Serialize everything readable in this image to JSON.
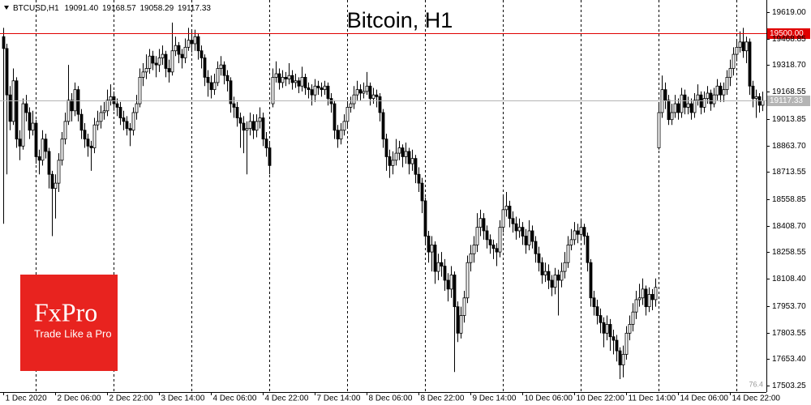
{
  "chart_data": {
    "type": "candlestick",
    "title": "Bitcoin, H1",
    "info_line": [
      "BTCUSD,H1",
      "19091.40",
      "19168.57",
      "19058.29",
      "19117.33"
    ],
    "corner_note": "76.4",
    "logo": {
      "brand": "FxPro",
      "tagline": "Trade Like a Pro"
    },
    "up_color": "#ffffff",
    "down_color": "#000000",
    "line_color": "#000000",
    "xlim": [
      -1,
      235.25
    ],
    "ylim": [
      17466.6,
      19687.8
    ],
    "xticks": [
      {
        "value": 0,
        "label": "1 Dec 2020"
      },
      {
        "value": 16,
        "label": "2 Dec 06:00"
      },
      {
        "value": 32,
        "label": "2 Dec 22:00"
      },
      {
        "value": 48,
        "label": "3 Dec 14:00"
      },
      {
        "value": 64,
        "label": "4 Dec 06:00"
      },
      {
        "value": 80,
        "label": "4 Dec 22:00"
      },
      {
        "value": 96,
        "label": "7 Dec 14:00"
      },
      {
        "value": 112,
        "label": "8 Dec 06:00"
      },
      {
        "value": 128,
        "label": "8 Dec 22:00"
      },
      {
        "value": 144,
        "label": "9 Dec 14:00"
      },
      {
        "value": 160,
        "label": "10 Dec 06:00"
      },
      {
        "value": 176,
        "label": "10 Dec 22:00"
      },
      {
        "value": 192,
        "label": "11 Dec 14:00"
      },
      {
        "value": 208,
        "label": "14 Dec 06:00"
      },
      {
        "value": 224,
        "label": "14 Dec 22:00"
      }
    ],
    "yticks": [
      {
        "value": 19619,
        "label": "19619.00"
      },
      {
        "value": 19468.85,
        "label": "19468.85"
      },
      {
        "value": 19318.7,
        "label": "19318.70"
      },
      {
        "value": 19168.55,
        "label": "19168.55"
      },
      {
        "value": 19013.85,
        "label": "19013.85"
      },
      {
        "value": 18863.7,
        "label": "18863.70"
      },
      {
        "value": 18713.55,
        "label": "18713.55"
      },
      {
        "value": 18558.85,
        "label": "18558.85"
      },
      {
        "value": 18408.7,
        "label": "18408.70"
      },
      {
        "value": 18258.55,
        "label": "18258.55"
      },
      {
        "value": 18108.4,
        "label": "18108.40"
      },
      {
        "value": 17953.7,
        "label": "17953.70"
      },
      {
        "value": 17803.55,
        "label": "17803.55"
      },
      {
        "value": 17653.4,
        "label": "17653.40"
      },
      {
        "value": 17503.25,
        "label": "17503.25"
      }
    ],
    "separators": [
      10,
      34,
      58,
      82,
      106,
      130,
      154,
      178,
      202,
      226
    ],
    "hlines": [
      {
        "value": 19500,
        "label": "19500.00",
        "color": "#e00000"
      },
      {
        "value": 19117.33,
        "label": "19117.33",
        "color": "#b4b4b4"
      }
    ],
    "open": [
      19480,
      19413,
      19150,
      19000,
      19230,
      18900,
      18860,
      19100,
      19050,
      18950,
      18990,
      18800,
      18780,
      18900,
      18830,
      18700,
      18620,
      18650,
      18780,
      18900,
      19000,
      19120,
      19060,
      19180,
      19040,
      18950,
      18900,
      18860,
      18850,
      18980,
      19000,
      19050,
      19060,
      19120,
      19140,
      19100,
      19080,
      19020,
      19000,
      18960,
      18950,
      19050,
      19100,
      19250,
      19280,
      19300,
      19370,
      19330,
      19320,
      19360,
      19380,
      19300,
      19280,
      19400,
      19430,
      19380,
      19360,
      19420,
      19460,
      19440,
      19480,
      19400,
      19360,
      19250,
      19220,
      19180,
      19220,
      19300,
      19320,
      19260,
      19230,
      19100,
      19080,
      19020,
      18990,
      18950,
      18960,
      19000,
      18950,
      19000,
      19020,
      18900,
      18850,
      19100,
      19250,
      19270,
      19220,
      19250,
      19240,
      19260,
      19220,
      19230,
      19200,
      19250,
      19190,
      19180,
      19150,
      19200,
      19190,
      19180,
      19200,
      19130,
      19100,
      18950,
      18900,
      18950,
      19000,
      19080,
      19100,
      19150,
      19180,
      19160,
      19170,
      19200,
      19130,
      19150,
      19140,
      19050,
      18900,
      18800,
      18750,
      18780,
      18820,
      18850,
      18800,
      18830,
      18760,
      18790,
      18700,
      18650,
      18550,
      18350,
      18260,
      18300,
      18150,
      18200,
      18180,
      18100,
      18050,
      18130,
      17950,
      17800,
      17900,
      18000,
      18200,
      18250,
      18300,
      18400,
      18450,
      18380,
      18330,
      18300,
      18280,
      18260,
      18400,
      18500,
      18520,
      18450,
      18420,
      18380,
      18400,
      18350,
      18300,
      18380,
      18320,
      18250,
      18200,
      18130,
      18150,
      18100,
      18060,
      18130,
      18100,
      18150,
      18200,
      18300,
      18330,
      18380,
      18360,
      18400,
      18350,
      18200,
      18000,
      17950,
      17900,
      17860,
      17800,
      17850,
      17780,
      17760,
      17700,
      17620,
      17680,
      17800,
      17850,
      17920,
      17990,
      18000,
      18050,
      17950,
      18020,
      17990,
      18850,
      19050,
      19180,
      19120,
      19010,
      19050,
      19100,
      19050,
      19150,
      19080,
      19100,
      19050,
      19120,
      19150,
      19080,
      19130,
      19160,
      19100,
      19150,
      19200,
      19150,
      19180,
      19250,
      19300,
      19380,
      19420,
      19450,
      19400,
      19450,
      19200,
      19130,
      19140,
      19091.4
    ],
    "high": [
      19530,
      19440,
      19200,
      19300,
      19250,
      18950,
      19130,
      19150,
      19080,
      19060,
      19010,
      18840,
      18950,
      18930,
      18850,
      18720,
      18700,
      18820,
      18940,
      19050,
      19320,
      19160,
      19220,
      19200,
      19070,
      18990,
      18930,
      18890,
      19020,
      19060,
      19090,
      19110,
      19180,
      19210,
      19170,
      19130,
      19110,
      19060,
      19030,
      18990,
      19080,
      19150,
      19300,
      19330,
      19380,
      19410,
      19400,
      19370,
      19410,
      19430,
      19400,
      19350,
      19560,
      19480,
      19450,
      19410,
      19470,
      19530,
      19510,
      19520,
      19500,
      19430,
      19380,
      19290,
      19260,
      19270,
      19340,
      19370,
      19340,
      19290,
      19250,
      19140,
      19110,
      19050,
      19030,
      19000,
      19050,
      19040,
      19040,
      19080,
      19050,
      18940,
      18880,
      19300,
      19340,
      19300,
      19290,
      19280,
      19330,
      19290,
      19270,
      19250,
      19310,
      19270,
      19220,
      19210,
      19240,
      19230,
      19220,
      19230,
      19220,
      19160,
      19120,
      18980,
      18990,
      19040,
      19120,
      19140,
      19200,
      19230,
      19210,
      19220,
      19280,
      19220,
      19190,
      19180,
      19160,
      19070,
      18930,
      18840,
      18830,
      18900,
      18890,
      18870,
      18880,
      18850,
      18840,
      18810,
      18740,
      18680,
      18570,
      18380,
      18350,
      18320,
      18250,
      18260,
      18220,
      18140,
      18180,
      18150,
      17980,
      17950,
      18040,
      18240,
      18300,
      18350,
      18480,
      18500,
      18480,
      18410,
      18360,
      18330,
      18310,
      18440,
      18580,
      18600,
      18550,
      18490,
      18460,
      18450,
      18430,
      18390,
      18440,
      18410,
      18350,
      18290,
      18230,
      18200,
      18190,
      18130,
      18170,
      18160,
      18200,
      18260,
      18350,
      18390,
      18430,
      18420,
      18450,
      18420,
      18370,
      18220,
      18040,
      17990,
      17940,
      17890,
      17900,
      17880,
      17820,
      17790,
      17720,
      17730,
      17840,
      17900,
      17970,
      18040,
      18080,
      18110,
      18070,
      18060,
      18050,
      18110,
      19100,
      19260,
      19220,
      19150,
      19100,
      19150,
      19130,
      19190,
      19180,
      19140,
      19130,
      19160,
      19210,
      19170,
      19170,
      19200,
      19180,
      19190,
      19240,
      19220,
      19220,
      19290,
      19350,
      19420,
      19460,
      19510,
      19530,
      19480,
      19470,
      19230,
      19180,
      19160,
      19168.57
    ],
    "low": [
      18420,
      18700,
      18950,
      18980,
      18850,
      18780,
      18840,
      19000,
      18900,
      18920,
      18760,
      18700,
      18750,
      18790,
      18620,
      18350,
      18450,
      18600,
      18750,
      18870,
      18980,
      19000,
      19030,
      19000,
      18900,
      18850,
      18800,
      18720,
      18820,
      18950,
      18960,
      19010,
      19030,
      19090,
      19060,
      19030,
      18980,
      18950,
      18920,
      18860,
      18920,
      19010,
      19080,
      19200,
      19240,
      19270,
      19290,
      19250,
      19280,
      19320,
      19250,
      19220,
      19260,
      19370,
      19330,
      19300,
      19330,
      19400,
      19390,
      19400,
      19350,
      19300,
      19200,
      19140,
      19130,
      19150,
      19200,
      19260,
      19210,
      19170,
      19050,
      19020,
      18970,
      18850,
      18820,
      18700,
      18920,
      18900,
      18910,
      18960,
      18860,
      18800,
      18700,
      19080,
      19220,
      19180,
      19190,
      19200,
      19210,
      19180,
      19190,
      19160,
      19170,
      19150,
      19130,
      19090,
      19110,
      19150,
      19140,
      19150,
      19090,
      19050,
      18900,
      18850,
      18870,
      18920,
      18970,
      19050,
      19070,
      19120,
      19120,
      19130,
      19150,
      19090,
      19100,
      19080,
      19000,
      18850,
      18720,
      18680,
      18700,
      18750,
      18780,
      18740,
      18760,
      18700,
      18720,
      18650,
      18600,
      18480,
      18300,
      18200,
      18150,
      18080,
      18100,
      18120,
      18040,
      17980,
      18000,
      17580,
      17750,
      17770,
      17860,
      17970,
      18150,
      18200,
      18260,
      18350,
      18330,
      18280,
      18250,
      18220,
      18180,
      18230,
      18370,
      18460,
      18400,
      18370,
      18330,
      18340,
      18300,
      18250,
      18270,
      18280,
      18200,
      18150,
      18080,
      18090,
      18050,
      18010,
      18020,
      17900,
      18060,
      18110,
      18170,
      18270,
      18300,
      18310,
      18330,
      18300,
      18150,
      17950,
      17900,
      17850,
      17800,
      17720,
      17760,
      17700,
      17680,
      17640,
      17540,
      17550,
      17650,
      17760,
      17810,
      17880,
      17950,
      17960,
      17900,
      17920,
      17930,
      17950,
      18840,
      19020,
      19070,
      18980,
      18980,
      19020,
      19010,
      19020,
      19040,
      19040,
      19010,
      19020,
      19090,
      19040,
      19050,
      19100,
      19060,
      19080,
      19120,
      19110,
      19110,
      19150,
      19200,
      19260,
      19340,
      19390,
      19360,
      19330,
      19150,
      19080,
      19020,
      19050,
      19058.29
    ],
    "close": [
      19413,
      19150,
      19000,
      19230,
      18900,
      18860,
      19100,
      19050,
      18950,
      18990,
      18800,
      18780,
      18900,
      18830,
      18700,
      18620,
      18650,
      18780,
      18900,
      19000,
      19120,
      19060,
      19180,
      19040,
      18950,
      18900,
      18860,
      18850,
      18980,
      19000,
      19050,
      19060,
      19120,
      19140,
      19100,
      19080,
      19020,
      19000,
      18960,
      18950,
      19050,
      19100,
      19250,
      19280,
      19300,
      19370,
      19330,
      19320,
      19360,
      19380,
      19300,
      19280,
      19400,
      19430,
      19380,
      19360,
      19420,
      19460,
      19440,
      19480,
      19400,
      19360,
      19250,
      19220,
      19180,
      19220,
      19300,
      19320,
      19260,
      19230,
      19100,
      19080,
      19020,
      18990,
      18950,
      18960,
      19000,
      18950,
      19000,
      19020,
      18900,
      18850,
      18750,
      19250,
      19270,
      19220,
      19250,
      19240,
      19260,
      19220,
      19230,
      19200,
      19250,
      19190,
      19180,
      19150,
      19200,
      19190,
      19180,
      19200,
      19130,
      19100,
      18950,
      18900,
      18950,
      19000,
      19080,
      19100,
      19150,
      19180,
      19160,
      19170,
      19200,
      19130,
      19150,
      19140,
      19050,
      18900,
      18800,
      18750,
      18780,
      18820,
      18850,
      18800,
      18830,
      18760,
      18790,
      18700,
      18650,
      18550,
      18350,
      18260,
      18300,
      18150,
      18200,
      18180,
      18100,
      18050,
      18130,
      17950,
      17800,
      17900,
      18000,
      18200,
      18250,
      18300,
      18400,
      18450,
      18380,
      18330,
      18300,
      18280,
      18260,
      18400,
      18500,
      18520,
      18450,
      18420,
      18380,
      18400,
      18350,
      18300,
      18380,
      18320,
      18250,
      18200,
      18130,
      18150,
      18100,
      18060,
      18130,
      18100,
      18150,
      18200,
      18300,
      18330,
      18380,
      18360,
      18400,
      18350,
      18200,
      18000,
      17950,
      17900,
      17860,
      17800,
      17850,
      17780,
      17760,
      17700,
      17620,
      17680,
      17800,
      17850,
      17920,
      17990,
      18000,
      18050,
      17950,
      18020,
      17990,
      18060,
      19050,
      19180,
      19120,
      19010,
      19050,
      19100,
      19050,
      19150,
      19080,
      19100,
      19050,
      19120,
      19150,
      19080,
      19130,
      19160,
      19100,
      19150,
      19200,
      19150,
      19180,
      19250,
      19300,
      19380,
      19420,
      19450,
      19400,
      19450,
      19200,
      19130,
      19140,
      19091.4,
      19117.33
    ]
  }
}
